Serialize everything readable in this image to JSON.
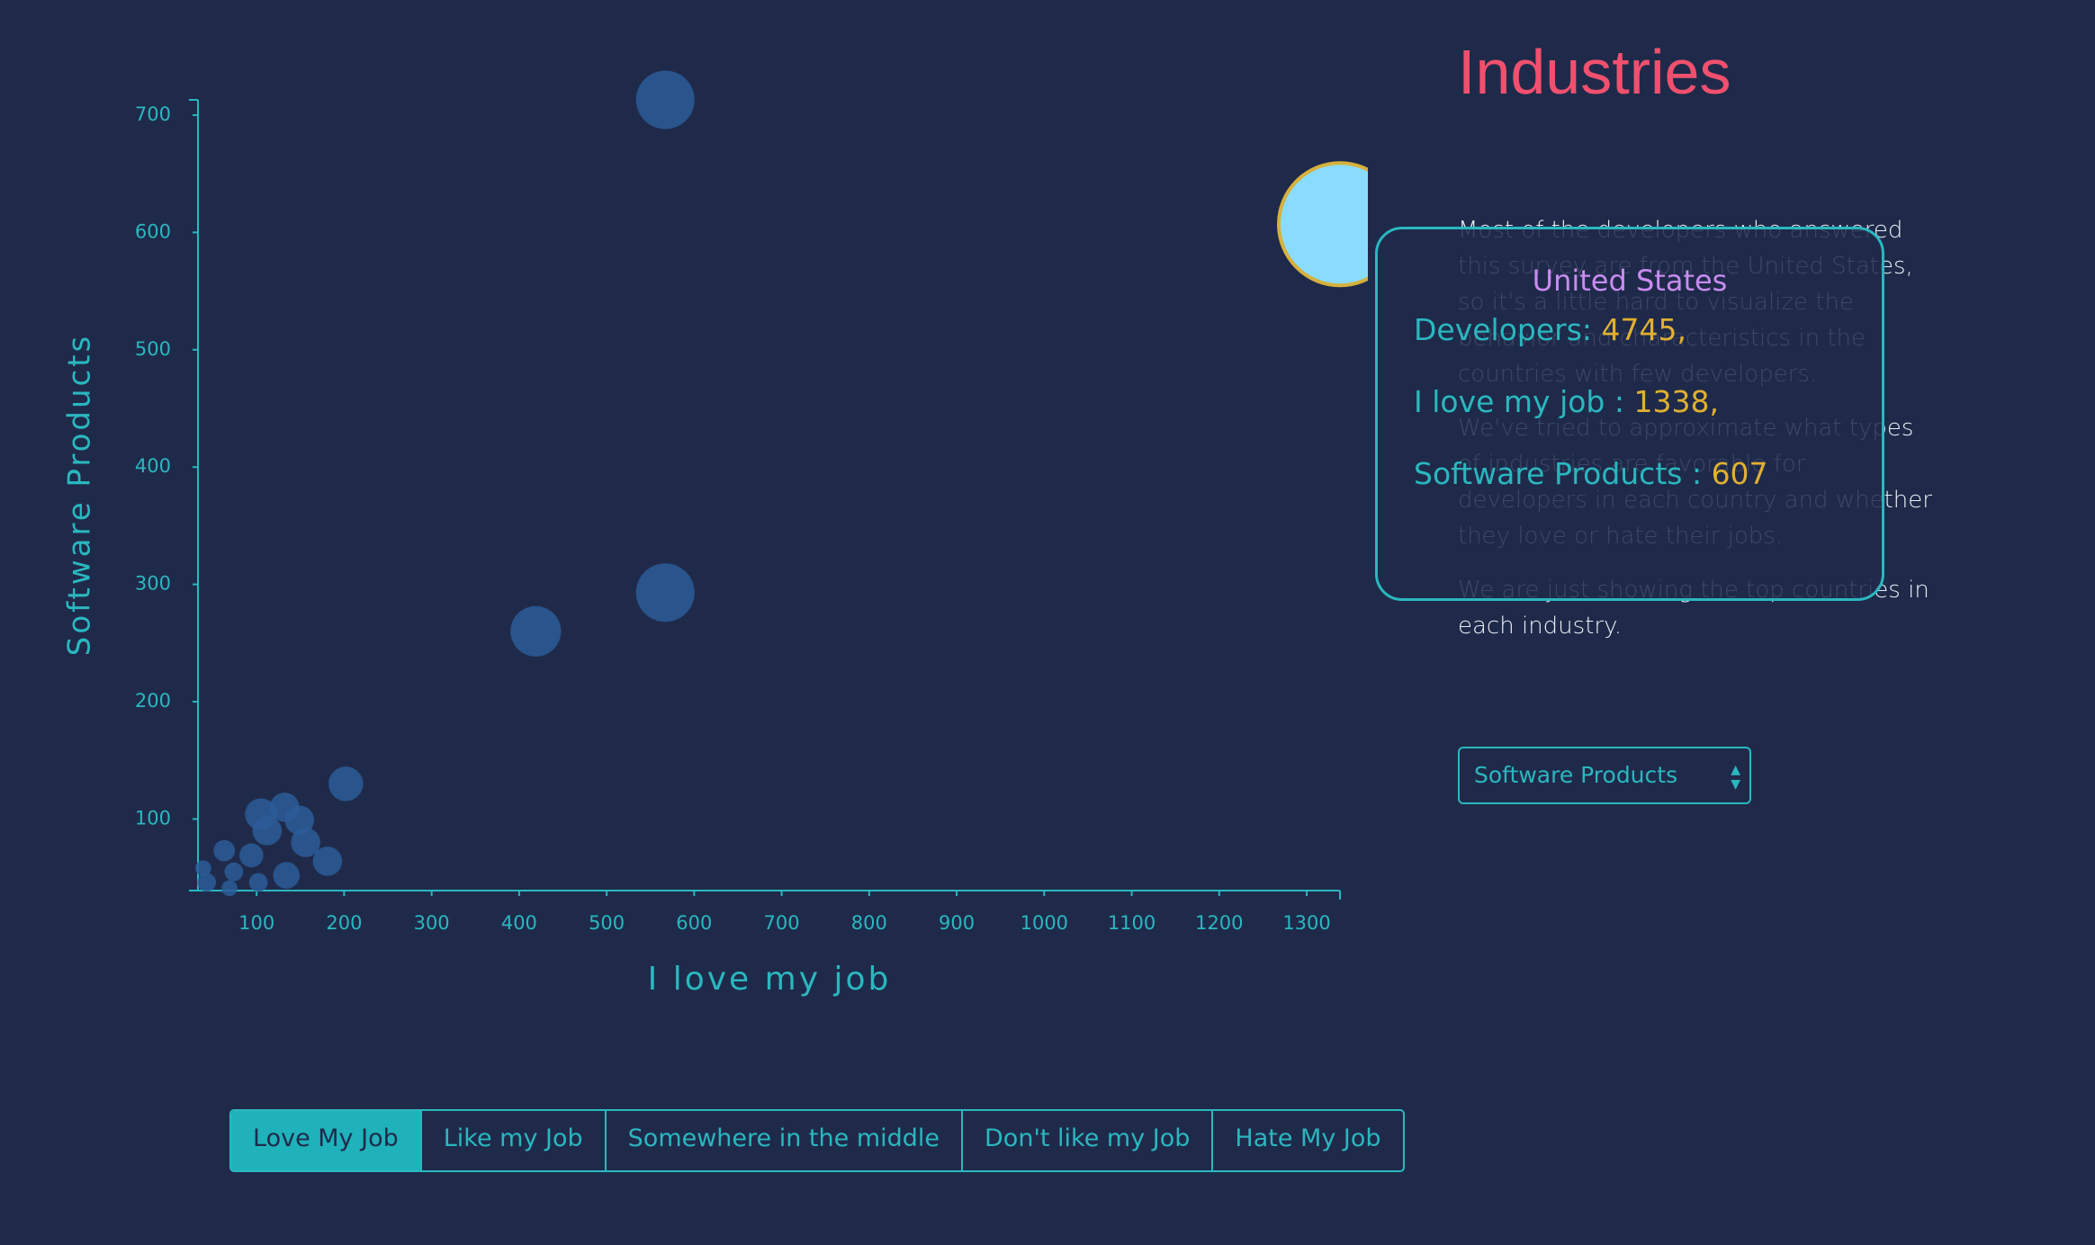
{
  "chart_data": {
    "type": "scatter",
    "x_label": "I love my job",
    "y_label": "Software Products",
    "x": [
      567,
      567,
      419,
      202,
      105,
      132,
      149,
      112,
      156,
      181,
      94,
      63,
      134,
      74,
      102,
      43,
      39,
      69,
      1338
    ],
    "values": [
      713,
      293,
      260,
      130,
      104,
      110,
      99,
      90,
      80,
      64,
      69,
      73,
      52,
      55,
      46,
      46,
      58,
      41,
      607
    ],
    "sizes": [
      1085,
      1085,
      809,
      379,
      323,
      272,
      272,
      272,
      272,
      272,
      182,
      144,
      224,
      110,
      110,
      110,
      81,
      81,
      4745
    ],
    "color": "#2b5c98",
    "highlight": {
      "index": 18,
      "color": "#8adcff",
      "stroke": "#d6b13c"
    },
    "xlim": [
      33,
      1338
    ],
    "ylim": [
      39,
      713
    ],
    "xticks": [
      100,
      200,
      300,
      400,
      500,
      600,
      700,
      800,
      900,
      1000,
      1100,
      1200,
      1300
    ],
    "yticks": [
      100,
      200,
      300,
      400,
      500,
      600,
      700
    ]
  },
  "side": {
    "title": "Industries",
    "paragraphs": [
      "Most of the developers who answered this survey are from the United States, so it's a little hard to visualize the behavior and characteristics in the countries with few developers.",
      "We've tried to approximate what types of industries are favorable for developers in each country and whether they love or hate their jobs.",
      "We are just showing the top countries in each industry."
    ],
    "select": "Software Products"
  },
  "tooltip": {
    "title": "United States",
    "rows": [
      {
        "label": "Developers:",
        "value": "4745,"
      },
      {
        "label": "I love my job :",
        "value": "1338,"
      },
      {
        "label": "Software Products :",
        "value": "607"
      }
    ]
  },
  "buttons": [
    "Love My Job",
    "Like my Job",
    "Somewhere in the middle",
    "Don't like my Job",
    "Hate My Job"
  ]
}
